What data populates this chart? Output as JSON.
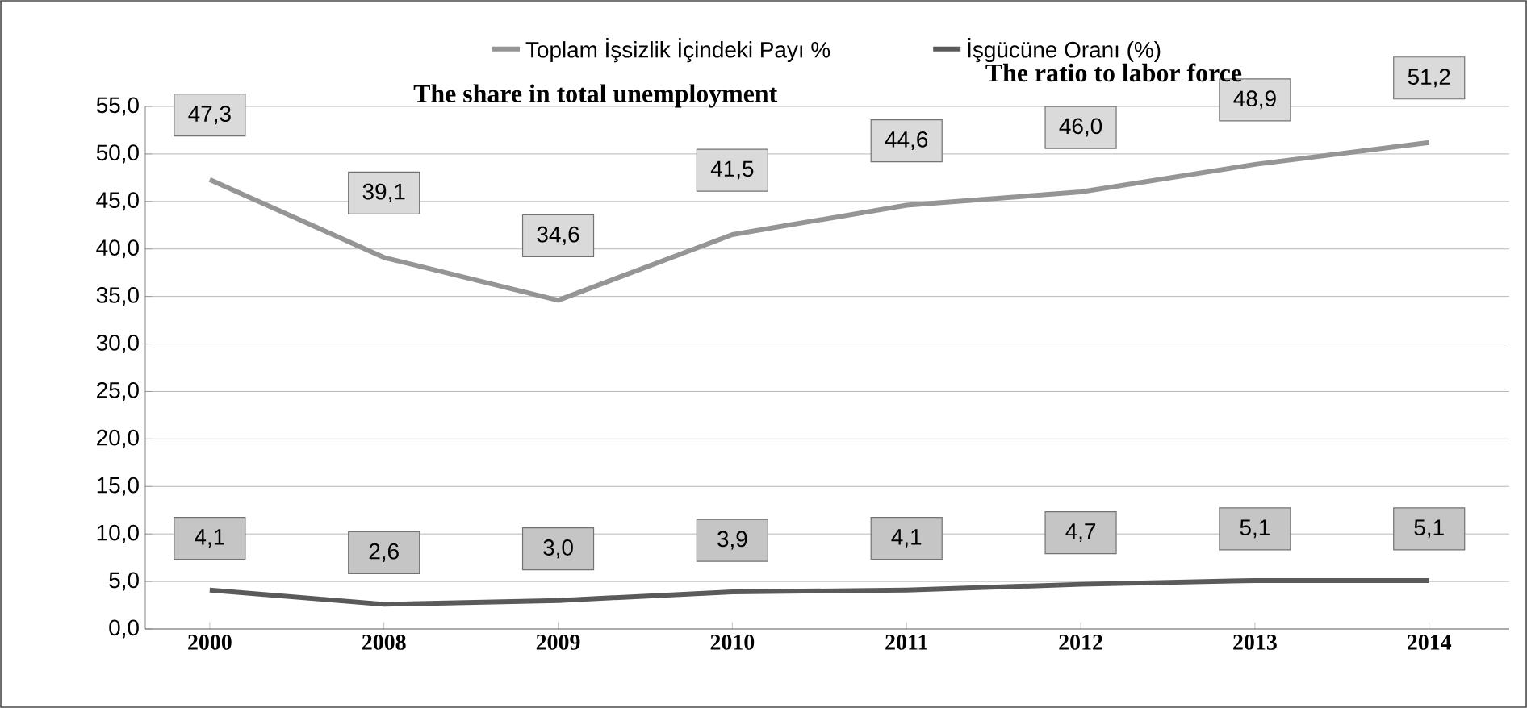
{
  "chart_data": {
    "type": "line",
    "categories": [
      "2000",
      "2008",
      "2009",
      "2010",
      "2011",
      "2012",
      "2013",
      "2014"
    ],
    "series": [
      {
        "name": "Toplam İşsizlik İçindeki Payı %",
        "color": "#959595",
        "values": [
          47.3,
          39.1,
          34.6,
          41.5,
          44.6,
          46.0,
          48.9,
          51.2
        ],
        "value_labels": [
          "47,3",
          "39,1",
          "34,6",
          "41,5",
          "44,6",
          "46,0",
          "48,9",
          "51,2"
        ]
      },
      {
        "name": "İşgücüne Oranı (%)",
        "color": "#5a5a5a",
        "values": [
          4.1,
          2.6,
          3.0,
          3.9,
          4.1,
          4.7,
          5.1,
          5.1
        ],
        "value_labels": [
          "4,1",
          "2,6",
          "3,0",
          "3,9",
          "4,1",
          "4,7",
          "5,1",
          "5,1"
        ]
      }
    ],
    "ylim": [
      0,
      55
    ],
    "yticks": [
      {
        "value": 0,
        "label": "0,0"
      },
      {
        "value": 5,
        "label": "5,0"
      },
      {
        "value": 10,
        "label": "10,0"
      },
      {
        "value": 15,
        "label": "15,0"
      },
      {
        "value": 20,
        "label": "20,0"
      },
      {
        "value": 25,
        "label": "25,0"
      },
      {
        "value": 30,
        "label": "30,0"
      },
      {
        "value": 35,
        "label": "35,0"
      },
      {
        "value": 40,
        "label": "40,0"
      },
      {
        "value": 45,
        "label": "45,0"
      },
      {
        "value": 50,
        "label": "50,0"
      },
      {
        "value": 55,
        "label": "55,0"
      }
    ],
    "grid": "y",
    "legend": "top",
    "annotations": [
      "The share in total unemployment",
      "The ratio to labor force"
    ]
  }
}
